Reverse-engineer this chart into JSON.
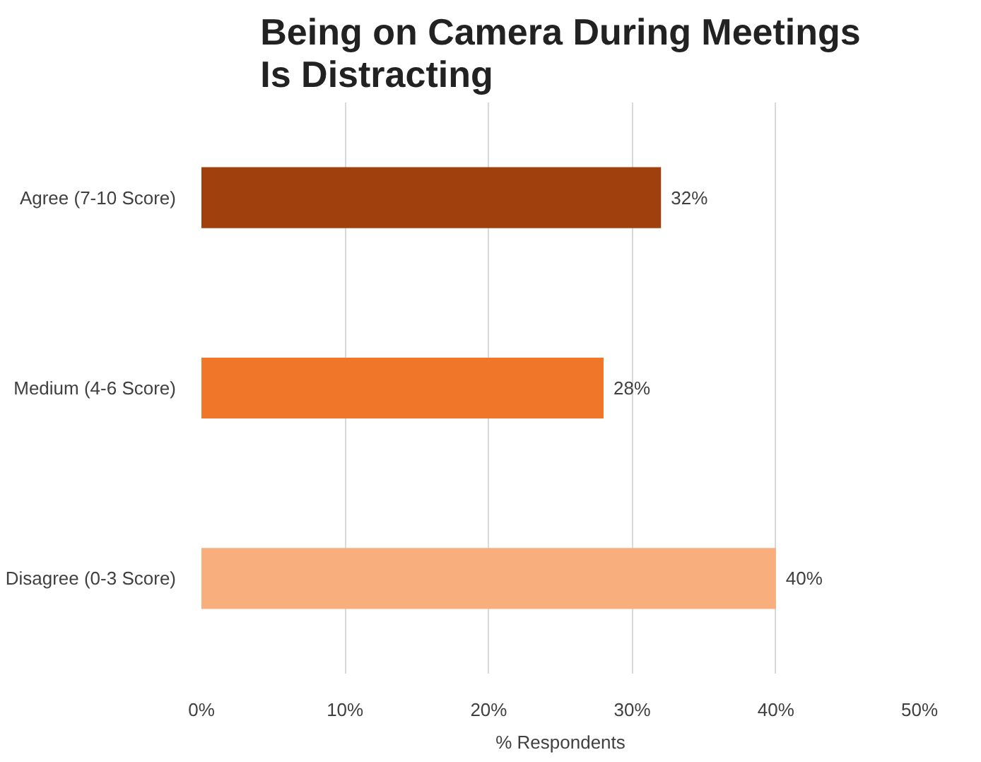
{
  "chart_data": {
    "type": "bar",
    "orientation": "horizontal",
    "title": "Being on Camera During Meetings Is Distracting",
    "xlabel": "% Respondents",
    "categories": [
      "Agree (7-10 Score)",
      "Medium (4-6 Score)",
      "Disagree (0-3 Score)"
    ],
    "values": [
      32,
      28,
      40
    ],
    "colors": [
      "#a0400c",
      "#f0762a",
      "#f9ae7d"
    ],
    "value_labels": [
      "32%",
      "28%",
      "40%"
    ],
    "xlim": [
      0,
      50
    ],
    "xticks": [
      {
        "value": 0,
        "label": "0%"
      },
      {
        "value": 10,
        "label": "10%"
      },
      {
        "value": 20,
        "label": "20%"
      },
      {
        "value": 30,
        "label": "30%"
      },
      {
        "value": 40,
        "label": "40%"
      },
      {
        "value": 50,
        "label": "50%"
      }
    ],
    "grid": "x"
  }
}
